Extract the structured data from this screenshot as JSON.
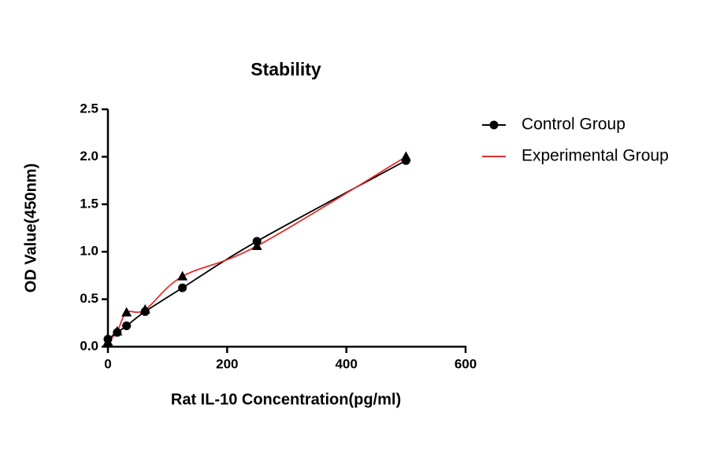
{
  "chart_data": {
    "type": "line",
    "title": "Stability",
    "x_label": "Rat IL-10 Concentration(pg/ml)",
    "y_label": "OD Value(450nm)",
    "x": [
      0,
      15.6,
      31.25,
      62.5,
      125,
      250,
      500
    ],
    "series": [
      {
        "name": "Control Group",
        "color": "#000000",
        "marker": "circle",
        "marker_color": "#000000",
        "legend_marker": true,
        "values": [
          0.08,
          0.15,
          0.22,
          0.37,
          0.62,
          1.11,
          1.96
        ]
      },
      {
        "name": "Experimental Group",
        "color": "#e0312f",
        "marker": "triangle",
        "marker_color": "#000000",
        "legend_marker": false,
        "values": [
          0.05,
          0.16,
          0.36,
          0.39,
          0.74,
          1.06,
          2.0
        ]
      }
    ],
    "xlim": [
      0,
      600
    ],
    "xticks": [
      0,
      200,
      400,
      600
    ],
    "ylim": [
      0,
      2.5
    ],
    "yticks": [
      {
        "value": 0,
        "label": "0.0"
      },
      0.5,
      {
        "value": 1,
        "label": "1.0"
      },
      1.5,
      {
        "value": 2,
        "label": "2.0"
      },
      2.5
    ],
    "grid": false,
    "legend": "right"
  }
}
